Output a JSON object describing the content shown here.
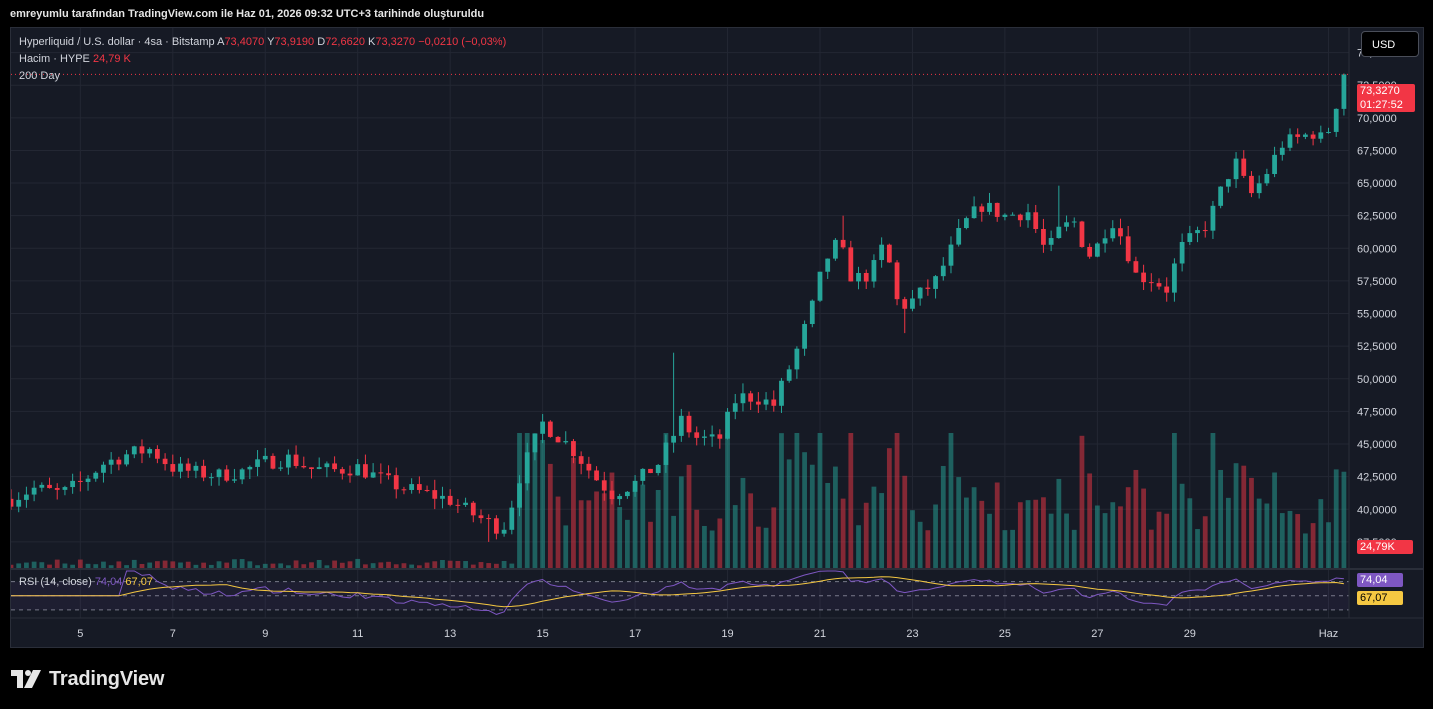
{
  "caption": "emreyumlu tarafından TradingView.com ile Haz 01, 2026 09:32 UTC+3 tarihinde oluşturuldu",
  "currency_button": "USD",
  "legend": {
    "symbol": "Hyperliquid / U.S. dollar · 4sa · Bitstamp",
    "open_label": "A",
    "open": "73,4070",
    "high_label": "Y",
    "high": "73,9190",
    "low_label": "D",
    "low": "72,6620",
    "close_label": "K",
    "close": "73,3270",
    "change": "−0,0210 (−0,03%)",
    "volume_label": "Hacim · HYPE",
    "volume": "24,79 K",
    "ma_label": "200 Day"
  },
  "rsi_legend": {
    "label": "RSI (14, close)",
    "rsi": "74,04",
    "ma": "67,07"
  },
  "tags": {
    "price": "73,3270",
    "countdown": "01:27:52",
    "volume": "24,79K",
    "rsi": "74,04",
    "rsi_ma": "67,07"
  },
  "colors": {
    "up": "#26a69a",
    "down": "#f23645",
    "rsi": "#7e57c2",
    "rsi_ma": "#f5c842",
    "background": "#161a25"
  },
  "logo_text": "TradingView",
  "chart_data": {
    "type": "candlestick",
    "title": "Hyperliquid / U.S. dollar · 4sa · Bitstamp",
    "timeframe": "4h",
    "y_ticks": [
      "75,0000",
      "72,5000",
      "70,0000",
      "67,5000",
      "65,0000",
      "62,5000",
      "60,0000",
      "57,5000",
      "55,0000",
      "52,5000",
      "50,0000",
      "47,5000",
      "45,0000",
      "42,5000",
      "40,0000",
      "37,5000"
    ],
    "ylim": [
      35.5,
      76.5
    ],
    "x_ticks": [
      {
        "label": "5",
        "day": 5
      },
      {
        "label": "7",
        "day": 7
      },
      {
        "label": "9",
        "day": 9
      },
      {
        "label": "11",
        "day": 11
      },
      {
        "label": "13",
        "day": 13
      },
      {
        "label": "15",
        "day": 15
      },
      {
        "label": "17",
        "day": 17
      },
      {
        "label": "19",
        "day": 19
      },
      {
        "label": "21",
        "day": 21
      },
      {
        "label": "23",
        "day": 23
      },
      {
        "label": "25",
        "day": 25
      },
      {
        "label": "27",
        "day": 27
      },
      {
        "label": "29",
        "day": 29
      },
      {
        "label": "Haz",
        "day": 32
      }
    ],
    "close_anchors": [
      [
        3.5,
        40.8
      ],
      [
        4.0,
        41.6
      ],
      [
        4.6,
        41.2
      ],
      [
        5.0,
        42.0
      ],
      [
        5.5,
        43.5
      ],
      [
        6.0,
        44.2
      ],
      [
        6.5,
        44.6
      ],
      [
        7.0,
        43.2
      ],
      [
        7.5,
        42.8
      ],
      [
        8.0,
        42.6
      ],
      [
        8.5,
        42.9
      ],
      [
        9.0,
        43.6
      ],
      [
        9.5,
        43.9
      ],
      [
        10.0,
        43.1
      ],
      [
        10.5,
        43.0
      ],
      [
        11.0,
        43.2
      ],
      [
        11.5,
        42.3
      ],
      [
        12.0,
        41.6
      ],
      [
        12.5,
        41.2
      ],
      [
        13.0,
        40.7
      ],
      [
        13.5,
        39.6
      ],
      [
        14.0,
        38.7
      ],
      [
        14.2,
        38.8
      ],
      [
        14.5,
        42.5
      ],
      [
        15.0,
        46.6
      ],
      [
        15.6,
        44.8
      ],
      [
        16.2,
        42.2
      ],
      [
        16.5,
        41.2
      ],
      [
        17.0,
        42.0
      ],
      [
        17.5,
        43.5
      ],
      [
        18.0,
        46.8
      ],
      [
        18.3,
        45.5
      ],
      [
        18.8,
        45.2
      ],
      [
        19.2,
        48.6
      ],
      [
        19.6,
        48.6
      ],
      [
        20.0,
        48.0
      ],
      [
        20.5,
        52.2
      ],
      [
        20.8,
        55.1
      ],
      [
        21.1,
        59.0
      ],
      [
        21.4,
        60.5
      ],
      [
        21.7,
        57.6
      ],
      [
        22.1,
        58.0
      ],
      [
        22.4,
        60.5
      ],
      [
        22.7,
        55.4
      ],
      [
        23.0,
        56.0
      ],
      [
        23.5,
        57.5
      ],
      [
        23.8,
        59.6
      ],
      [
        24.1,
        61.8
      ],
      [
        24.5,
        63.3
      ],
      [
        25.0,
        62.5
      ],
      [
        25.5,
        62.8
      ],
      [
        25.9,
        59.6
      ],
      [
        26.2,
        61.5
      ],
      [
        26.5,
        62.0
      ],
      [
        26.8,
        59.4
      ],
      [
        27.0,
        60.2
      ],
      [
        27.3,
        62.3
      ],
      [
        27.6,
        60.4
      ],
      [
        27.8,
        58.0
      ],
      [
        28.2,
        57.6
      ],
      [
        28.5,
        56.9
      ],
      [
        28.8,
        60.0
      ],
      [
        29.1,
        60.9
      ],
      [
        29.4,
        62.0
      ],
      [
        29.8,
        65.5
      ],
      [
        30.0,
        66.5
      ],
      [
        30.3,
        64.0
      ],
      [
        30.6,
        65.4
      ],
      [
        31.0,
        68.0
      ],
      [
        31.4,
        68.5
      ],
      [
        31.7,
        68.9
      ],
      [
        31.9,
        68.2
      ],
      [
        32.1,
        70.0
      ],
      [
        32.3,
        73.3
      ]
    ],
    "volume": {
      "last": "24,79K",
      "max_approx": 52
    },
    "rsi": {
      "period": 14,
      "last": 74.04,
      "ma_last": 67.07,
      "levels": [
        70,
        50,
        30
      ]
    }
  }
}
